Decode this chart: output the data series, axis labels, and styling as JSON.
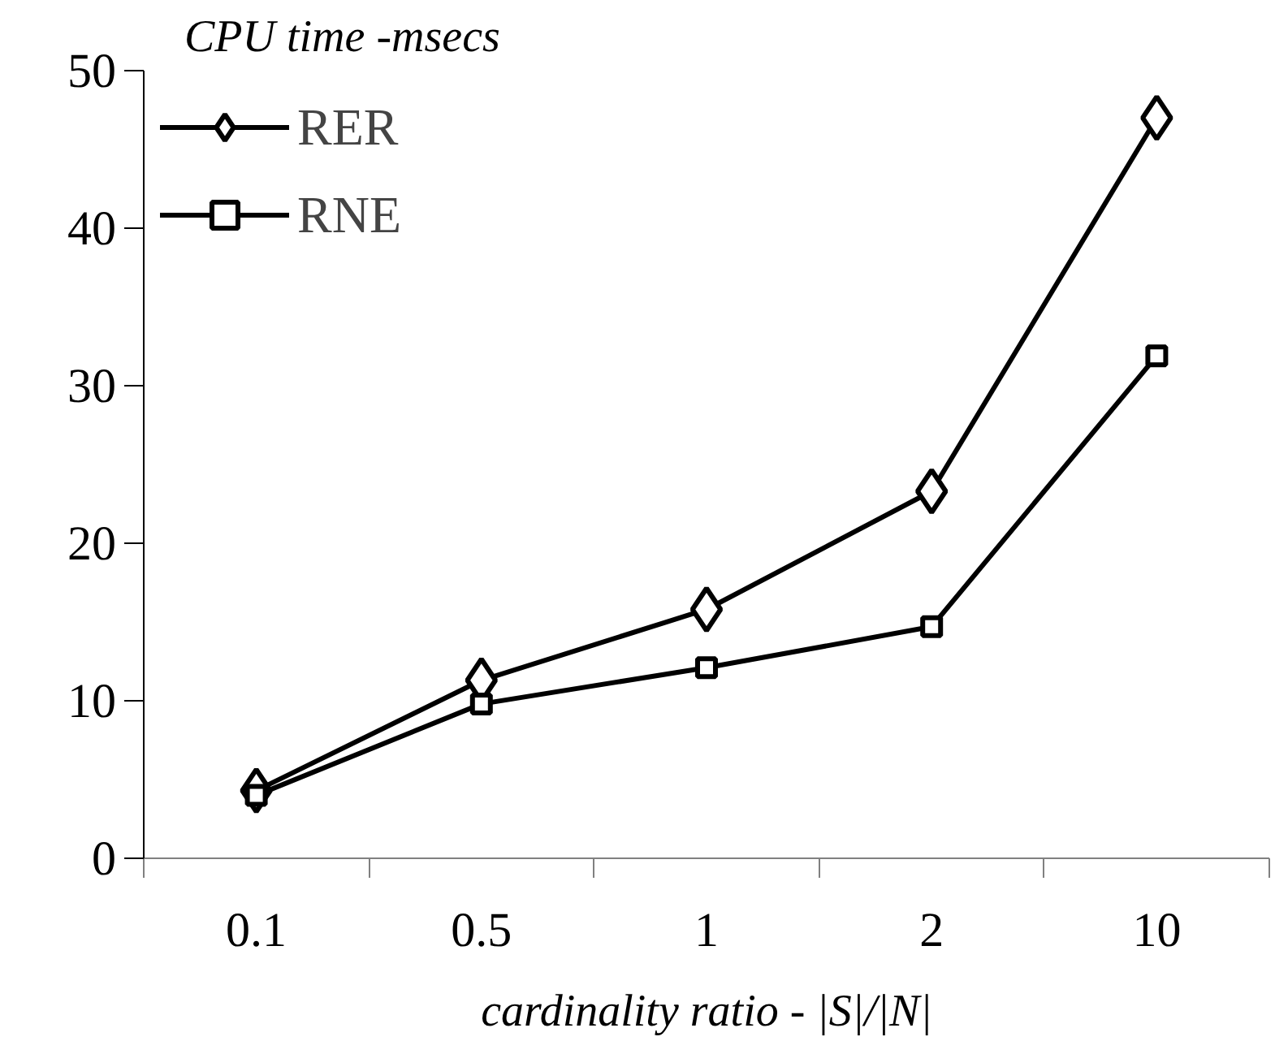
{
  "chart_data": {
    "type": "line",
    "title": "CPU time -msecs",
    "xlabel": "cardinality ratio - |S|/|N|",
    "categories": [
      "0.1",
      "0.5",
      "1",
      "2",
      "10"
    ],
    "series": [
      {
        "name": "RER",
        "color": "#000000",
        "marker": "diamond",
        "values": [
          4.3,
          11.3,
          15.8,
          23.3,
          47
        ]
      },
      {
        "name": "RNE",
        "color": "#000000",
        "marker": "square",
        "values": [
          4.0,
          9.8,
          12.1,
          14.7,
          31.9
        ]
      }
    ],
    "ylim": [
      0,
      50
    ],
    "yticks": [
      0,
      10,
      20,
      30,
      40,
      50
    ],
    "grid": false,
    "legend": "top left",
    "line_style": "solid"
  }
}
